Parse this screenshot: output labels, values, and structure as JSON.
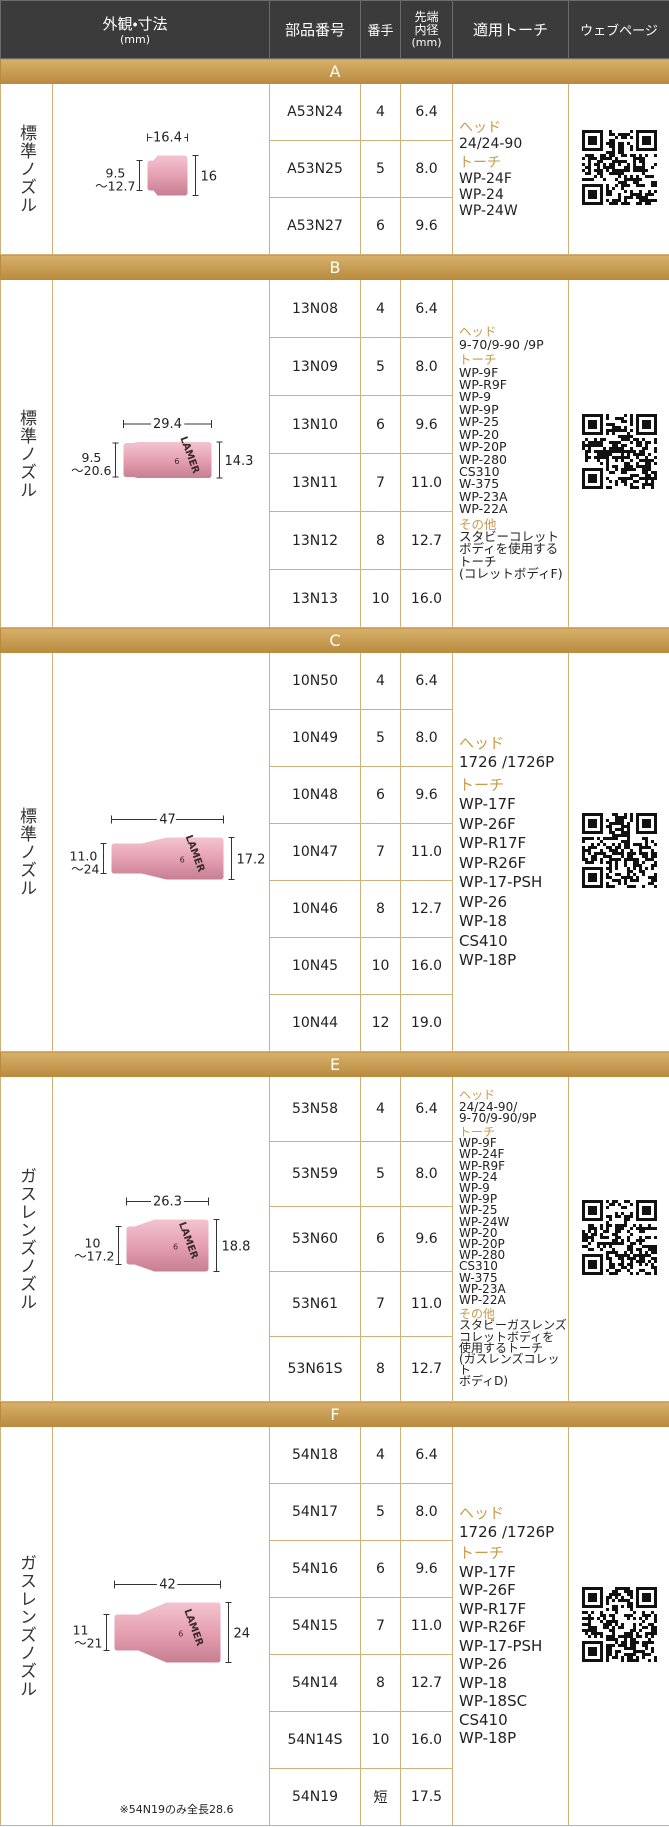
{
  "header": {
    "appearance": "外観・寸法",
    "appearance_unit": "(mm)",
    "part_number": "部品番号",
    "size": "番手",
    "bore": "先端内径",
    "bore_unit": "(mm)",
    "torch": "適用トーチ",
    "webpage": "ウェブページ"
  },
  "sections": [
    {
      "label": "A",
      "type": "標準ノズル",
      "dims": {
        "length": "16.4",
        "bore": [
          "9.5",
          "～12.7"
        ],
        "height": "16"
      },
      "rows": [
        {
          "part": "A53N24",
          "size": "4",
          "bore": "6.4"
        },
        {
          "part": "A53N25",
          "size": "5",
          "bore": "8.0"
        },
        {
          "part": "A53N27",
          "size": "6",
          "bore": "9.6"
        }
      ],
      "torch": [
        {
          "heading": "ヘッド",
          "items": [
            "24/24-90"
          ]
        },
        {
          "heading": "トーチ",
          "items": [
            "WP-24F",
            "WP-24",
            "WP-24W"
          ]
        }
      ]
    },
    {
      "label": "B",
      "type": "標準ノズル",
      "marking": [
        "LAMER",
        "6"
      ],
      "dims": {
        "length": "29.4",
        "bore": [
          "9.5",
          "～20.6"
        ],
        "height": "14.3"
      },
      "rows": [
        {
          "part": "13N08",
          "size": "4",
          "bore": "6.4"
        },
        {
          "part": "13N09",
          "size": "5",
          "bore": "8.0"
        },
        {
          "part": "13N10",
          "size": "6",
          "bore": "9.6"
        },
        {
          "part": "13N11",
          "size": "7",
          "bore": "11.0"
        },
        {
          "part": "13N12",
          "size": "8",
          "bore": "12.7"
        },
        {
          "part": "13N13",
          "size": "10",
          "bore": "16.0"
        }
      ],
      "torch": [
        {
          "heading": "ヘッド",
          "items": [
            "9-70/9-90 /9P"
          ]
        },
        {
          "heading": "トーチ",
          "items": [
            "WP-9F",
            "WP-R9F",
            "WP-9",
            "WP-9P",
            "WP-25",
            "WP-20",
            "WP-20P",
            "WP-280",
            "CS310",
            "W-375",
            "WP-23A",
            "WP-22A"
          ]
        },
        {
          "heading": "その他",
          "items": [
            "スタビーコレット",
            "ボディを使用する",
            "トーチ",
            "(コレットボディF)"
          ]
        }
      ]
    },
    {
      "label": "C",
      "type": "標準ノズル",
      "marking": [
        "LAMER",
        "6"
      ],
      "dims": {
        "length": "47",
        "bore": [
          "11.0",
          "～24"
        ],
        "height": "17.2"
      },
      "rows": [
        {
          "part": "10N50",
          "size": "4",
          "bore": "6.4"
        },
        {
          "part": "10N49",
          "size": "5",
          "bore": "8.0"
        },
        {
          "part": "10N48",
          "size": "6",
          "bore": "9.6"
        },
        {
          "part": "10N47",
          "size": "7",
          "bore": "11.0"
        },
        {
          "part": "10N46",
          "size": "8",
          "bore": "12.7"
        },
        {
          "part": "10N45",
          "size": "10",
          "bore": "16.0"
        },
        {
          "part": "10N44",
          "size": "12",
          "bore": "19.0"
        }
      ],
      "torch": [
        {
          "heading": "ヘッド",
          "items": [
            "1726 /1726P"
          ]
        },
        {
          "heading": "トーチ",
          "items": [
            "WP-17F",
            "WP-26F",
            "WP-R17F",
            "WP-R26F",
            "WP-17-PSH",
            "WP-26",
            "WP-18",
            "CS410",
            "WP-18P"
          ]
        }
      ]
    },
    {
      "label": "E",
      "type": "ガスレンズノズル",
      "marking": [
        "LAMER",
        "6"
      ],
      "dims": {
        "length": "26.3",
        "bore": [
          "10",
          "～17.2"
        ],
        "height": "18.8"
      },
      "rows": [
        {
          "part": "53N58",
          "size": "4",
          "bore": "6.4"
        },
        {
          "part": "53N59",
          "size": "5",
          "bore": "8.0"
        },
        {
          "part": "53N60",
          "size": "6",
          "bore": "9.6"
        },
        {
          "part": "53N61",
          "size": "7",
          "bore": "11.0"
        },
        {
          "part": "53N61S",
          "size": "8",
          "bore": "12.7"
        }
      ],
      "torch": [
        {
          "heading": "ヘッド",
          "items": [
            "24/24-90/",
            "9-70/9-90/9P"
          ]
        },
        {
          "heading": "トーチ",
          "items": [
            "WP-9F",
            "WP-24F",
            "WP-R9F",
            "WP-24",
            "WP-9",
            "WP-9P",
            "WP-25",
            "WP-24W",
            "WP-20",
            "WP-20P",
            "WP-280",
            "CS310",
            "W-375",
            "WP-23A",
            "WP-22A"
          ]
        },
        {
          "heading": "その他",
          "items": [
            "スタビーガスレンズ",
            "コレットボディを",
            "使用するトーチ",
            "(ガスレンズコレット",
            "ボディD)"
          ]
        }
      ]
    },
    {
      "label": "F",
      "type": "ガスレンズノズル",
      "marking": [
        "LAMER",
        "6"
      ],
      "dims": {
        "length": "42",
        "bore": [
          "11",
          "～21"
        ],
        "height": "24"
      },
      "note": "※54N19のみ全長28.6",
      "rows": [
        {
          "part": "54N18",
          "size": "4",
          "bore": "6.4"
        },
        {
          "part": "54N17",
          "size": "5",
          "bore": "8.0"
        },
        {
          "part": "54N16",
          "size": "6",
          "bore": "9.6"
        },
        {
          "part": "54N15",
          "size": "7",
          "bore": "11.0"
        },
        {
          "part": "54N14",
          "size": "8",
          "bore": "12.7"
        },
        {
          "part": "54N14S",
          "size": "10",
          "bore": "16.0"
        },
        {
          "part": "54N19",
          "size": "短",
          "bore": "17.5"
        }
      ],
      "torch": [
        {
          "heading": "ヘッド",
          "items": [
            "1726 /1726P"
          ]
        },
        {
          "heading": "トーチ",
          "items": [
            "WP-17F",
            "WP-26F",
            "WP-R17F",
            "WP-R26F",
            "WP-17-PSH",
            "WP-26",
            "WP-18",
            "WP-18SC",
            "CS410",
            "WP-18P"
          ]
        }
      ]
    }
  ]
}
